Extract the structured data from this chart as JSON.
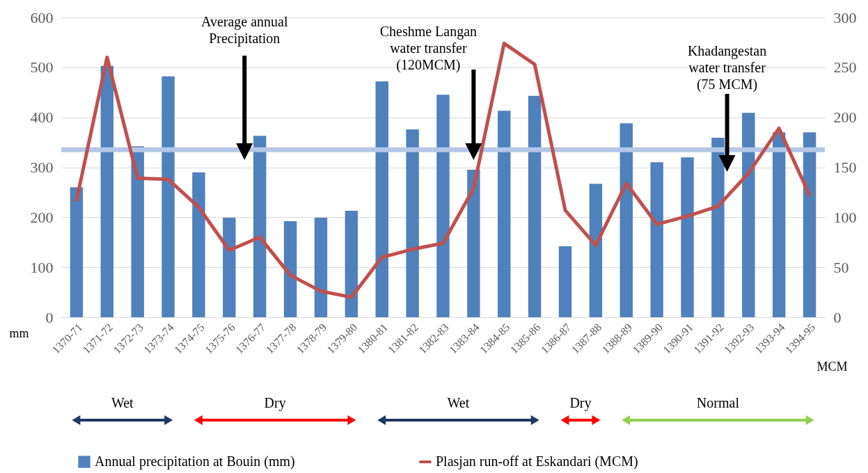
{
  "chart_data": {
    "type": "bar",
    "categories": [
      "1370-71",
      "1371-72",
      "1372-73",
      "1373-74",
      "1374-75",
      "1375-76",
      "1376-77",
      "1377-78",
      "1378-79",
      "1379-80",
      "1380-81",
      "1381-82",
      "1382-83",
      "1383-84",
      "1384-85",
      "1385-86",
      "1386-87",
      "1387-88",
      "1388-89",
      "1389-90",
      "1390-91",
      "1391-92",
      "1392-93",
      "1393-94",
      "1394-95"
    ],
    "series": [
      {
        "name": "Annual precipitation at Bouin (mm)",
        "color": "#4f81bd",
        "values": [
          260,
          503,
          342,
          482,
          290,
          199,
          363,
          192,
          199,
          213,
          472,
          376,
          445,
          295,
          413,
          443,
          142,
          267,
          388,
          310,
          320,
          359,
          409,
          370,
          370
        ]
      },
      {
        "name": "Plasjan run-off at Eskandari (MCM)",
        "type": "line",
        "axis": "y2",
        "color": "#c0504d",
        "values": [
          117,
          260,
          139,
          138,
          110,
          67,
          80,
          42,
          26,
          20,
          60,
          68,
          74,
          129,
          274,
          253,
          107,
          72,
          134,
          93,
          101,
          111,
          144,
          189,
          122
        ]
      }
    ],
    "ylim": [
      0,
      600
    ],
    "yticks": [
      0,
      100,
      200,
      300,
      400,
      500,
      600
    ],
    "y2lim": [
      0,
      300
    ],
    "y2ticks": [
      0,
      50,
      100,
      150,
      200,
      250,
      300
    ],
    "ylabel": "mm",
    "y2label": "MCM",
    "grid": "y",
    "legend": "bottom",
    "ref_lines": [
      {
        "axis": "y",
        "value": 335,
        "color": "#b4c7e7"
      }
    ],
    "annotations": [
      "Average annual\nPrecipitation",
      "Cheshme Langan\nwater transfer\n(120MCM)",
      "Khadangestan\nwater transfer\n(75 MCM)",
      "Wet",
      "Dry",
      "Wet",
      "Dry",
      "Normal"
    ]
  }
}
